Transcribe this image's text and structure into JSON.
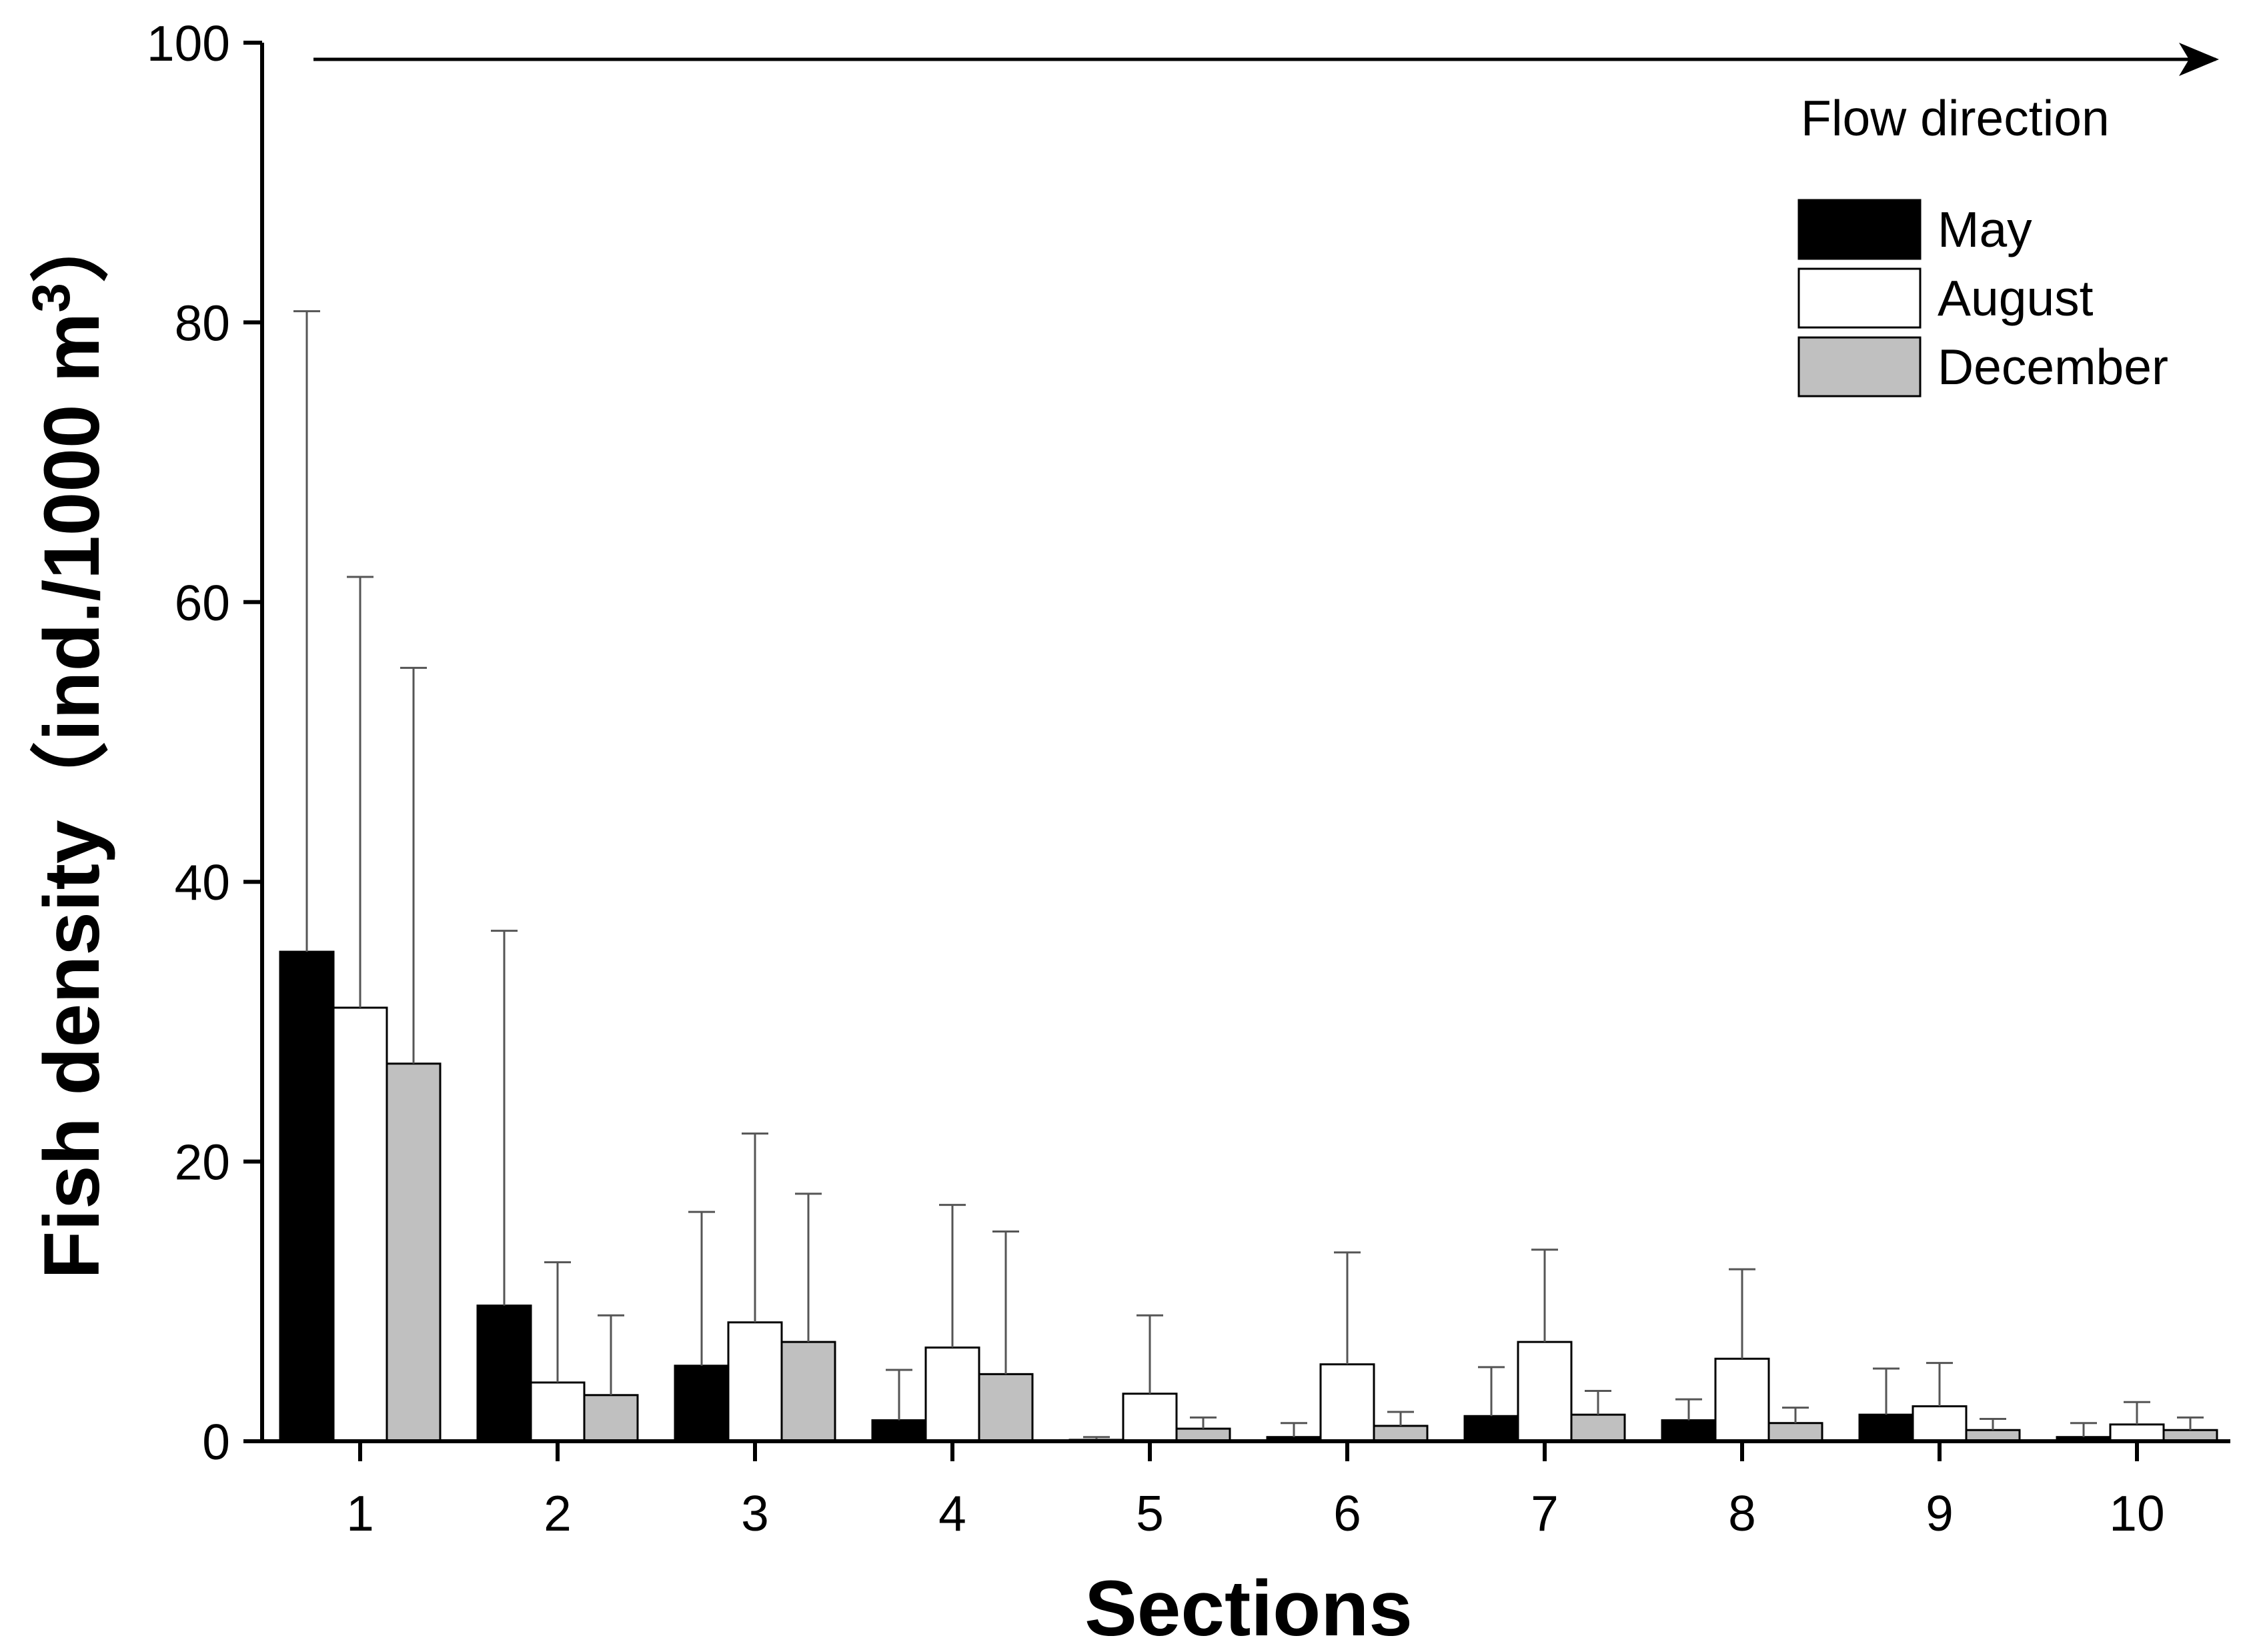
{
  "chart_data": {
    "type": "bar",
    "xlabel": "Sections",
    "ylabel": "Fish density（ind./1000 m",
    "ylabel_superscript": "3",
    "ylabel_close": "）",
    "ylim": [
      0,
      100
    ],
    "yticks": [
      0,
      20,
      40,
      60,
      80,
      100
    ],
    "categories": [
      "1",
      "2",
      "3",
      "4",
      "5",
      "6",
      "7",
      "8",
      "9",
      "10"
    ],
    "annotation": "Flow direction",
    "legend_position": "top-right",
    "grid": false,
    "series": [
      {
        "name": "May",
        "color": "#000000",
        "values": [
          35.0,
          9.7,
          5.4,
          1.5,
          0.1,
          0.3,
          1.8,
          1.5,
          1.9,
          0.3
        ],
        "error_upper": [
          80.8,
          36.5,
          16.4,
          5.1,
          0.3,
          1.3,
          5.3,
          3.0,
          5.2,
          1.3
        ]
      },
      {
        "name": "August",
        "color": "#ffffff",
        "values": [
          31.0,
          4.2,
          8.5,
          6.7,
          3.4,
          5.5,
          7.1,
          5.9,
          2.5,
          1.2
        ],
        "error_upper": [
          61.8,
          12.8,
          22.0,
          16.9,
          9.0,
          13.5,
          13.7,
          12.3,
          5.6,
          2.8
        ]
      },
      {
        "name": "December",
        "color": "#c0c0c0",
        "values": [
          27.0,
          3.3,
          7.1,
          4.8,
          0.9,
          1.1,
          1.9,
          1.3,
          0.8,
          0.8
        ],
        "error_upper": [
          55.3,
          9.0,
          17.7,
          15.0,
          1.7,
          2.1,
          3.6,
          2.4,
          1.6,
          1.7
        ]
      }
    ]
  }
}
